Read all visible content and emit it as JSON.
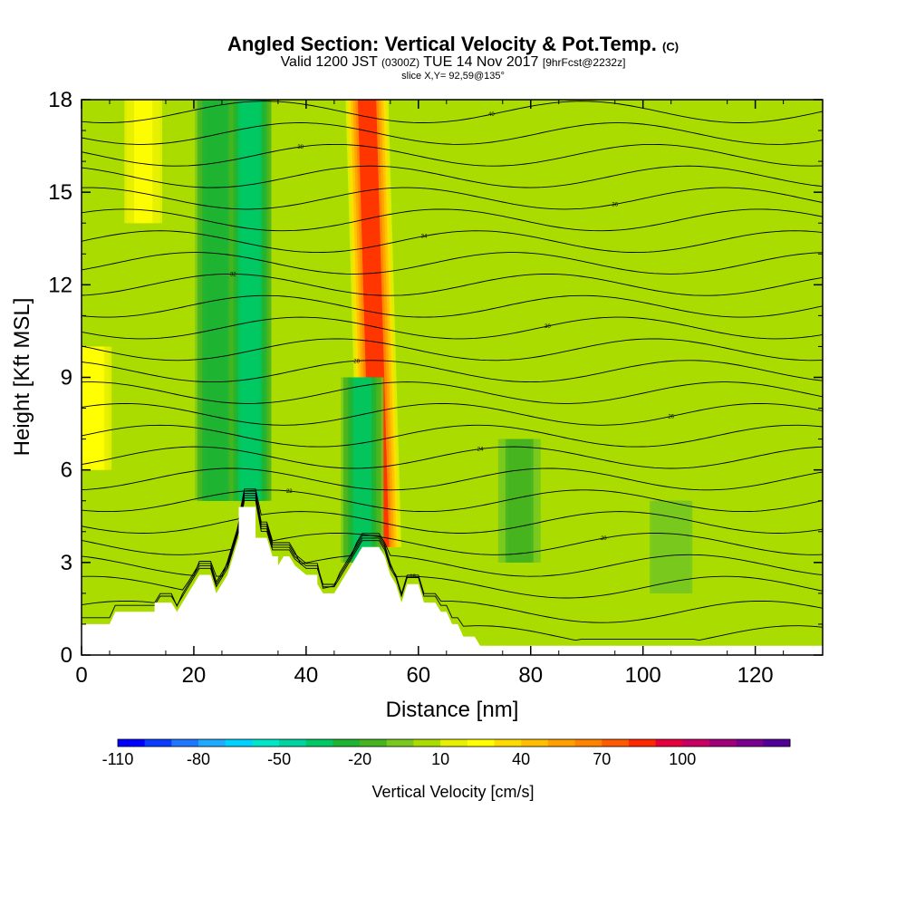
{
  "title": {
    "main": "Angled Section: Vertical Velocity & Pot.Temp.",
    "main_suffix": "(C)",
    "line2_a": "Valid 1200 JST",
    "line2_b": "(0300Z)",
    "line2_c": "TUE 14 Nov 2017",
    "line2_d": "[9hrFcst@2232z]",
    "line3": "slice X,Y= 92,59@135°"
  },
  "chart_data": {
    "type": "heatmap",
    "xlabel": "Distance [nm]",
    "ylabel": "Height [Kft MSL]",
    "xlim": [
      0,
      132
    ],
    "ylim": [
      0,
      18
    ],
    "xticks": [
      0,
      20,
      40,
      60,
      80,
      100,
      120
    ],
    "yticks": [
      0,
      3,
      6,
      9,
      12,
      15,
      18
    ],
    "colorbar": {
      "label": "Vertical Velocity [cm/s]",
      "tick_labels": [
        "-110",
        "-80",
        "-50",
        "-20",
        "10",
        "40",
        "70",
        "100"
      ],
      "tick_values": [
        -110,
        -80,
        -50,
        -20,
        10,
        40,
        70,
        100
      ],
      "levels_min": -110,
      "levels_step": 10,
      "colors": [
        "#0000ff",
        "#0a3cff",
        "#1e78ff",
        "#1eaaff",
        "#00d2ff",
        "#00e6c8",
        "#00d2a0",
        "#00c864",
        "#1eb432",
        "#46b41e",
        "#78c81e",
        "#aadc00",
        "#e6f000",
        "#ffff00",
        "#ffdc00",
        "#ffbe00",
        "#ffa000",
        "#ff8200",
        "#ff5a00",
        "#ff2800",
        "#e6003c",
        "#c80064",
        "#a00078",
        "#78008c",
        "#500096"
      ]
    },
    "updrafts": [
      {
        "x": 2,
        "z_bottom": 6,
        "z_top": 10,
        "w": 25
      },
      {
        "x": 11,
        "z_bottom": 14,
        "z_top": 18,
        "w": 20
      },
      {
        "x": 52,
        "z_bottom": 3.5,
        "z_top": 18,
        "w": 80
      }
    ],
    "downdrafts": [
      {
        "x": 24,
        "z_bottom": 5,
        "z_top": 18,
        "w": -30
      },
      {
        "x": 30,
        "z_bottom": 5,
        "z_top": 18,
        "w": -40
      },
      {
        "x": 50,
        "z_bottom": 3,
        "z_top": 9,
        "w": -35
      },
      {
        "x": 78,
        "z_bottom": 3,
        "z_top": 7,
        "w": -15
      },
      {
        "x": 105,
        "z_bottom": 2,
        "z_top": 5,
        "w": -10
      }
    ],
    "terrain_height_kft": [
      [
        0,
        1.0
      ],
      [
        5,
        1.0
      ],
      [
        6,
        1.4
      ],
      [
        13,
        1.4
      ],
      [
        13,
        1.7
      ],
      [
        16,
        1.7
      ],
      [
        17,
        1.4
      ],
      [
        18,
        1.7
      ],
      [
        19,
        2.0
      ],
      [
        20,
        2.3
      ],
      [
        21,
        2.6
      ],
      [
        23,
        2.6
      ],
      [
        24,
        2.0
      ],
      [
        26,
        2.6
      ],
      [
        27,
        3.2
      ],
      [
        28,
        3.8
      ],
      [
        28,
        4.8
      ],
      [
        31,
        4.8
      ],
      [
        31,
        3.8
      ],
      [
        33,
        3.8
      ],
      [
        34,
        3.2
      ],
      [
        35,
        3.2
      ],
      [
        35,
        2.9
      ],
      [
        36,
        3.2
      ],
      [
        37,
        3.2
      ],
      [
        38,
        2.9
      ],
      [
        40,
        2.6
      ],
      [
        42,
        2.6
      ],
      [
        42,
        2.3
      ],
      [
        43,
        2.0
      ],
      [
        45,
        2.0
      ],
      [
        46,
        2.3
      ],
      [
        47,
        2.6
      ],
      [
        48,
        2.9
      ],
      [
        49,
        3.2
      ],
      [
        50,
        3.5
      ],
      [
        53,
        3.5
      ],
      [
        54,
        3.2
      ],
      [
        55,
        2.6
      ],
      [
        56,
        2.3
      ],
      [
        57,
        1.7
      ],
      [
        58,
        2.3
      ],
      [
        60,
        2.3
      ],
      [
        61,
        1.7
      ],
      [
        63,
        1.7
      ],
      [
        64,
        1.4
      ],
      [
        65,
        1.4
      ],
      [
        66,
        1.0
      ],
      [
        67,
        1.0
      ],
      [
        68,
        0.6
      ],
      [
        70,
        0.6
      ],
      [
        71,
        0.3
      ],
      [
        132,
        0.3
      ]
    ],
    "isentropes": [
      {
        "base_z": 0.6,
        "label": "15"
      },
      {
        "base_z": 1.4,
        "label": ""
      },
      {
        "base_z": 2.2,
        "label": "18"
      },
      {
        "base_z": 2.9,
        "label": ""
      },
      {
        "base_z": 3.6,
        "label": "20"
      },
      {
        "base_z": 4.3,
        "label": ""
      },
      {
        "base_z": 5.0,
        "label": "22"
      },
      {
        "base_z": 5.7,
        "label": ""
      },
      {
        "base_z": 6.4,
        "label": "24"
      },
      {
        "base_z": 7.1,
        "label": ""
      },
      {
        "base_z": 7.8,
        "label": "26"
      },
      {
        "base_z": 8.5,
        "label": ""
      },
      {
        "base_z": 9.2,
        "label": "28"
      },
      {
        "base_z": 9.9,
        "label": ""
      },
      {
        "base_z": 10.6,
        "label": "30"
      },
      {
        "base_z": 11.3,
        "label": ""
      },
      {
        "base_z": 12.0,
        "label": "32"
      },
      {
        "base_z": 12.7,
        "label": ""
      },
      {
        "base_z": 13.4,
        "label": "34"
      },
      {
        "base_z": 14.1,
        "label": ""
      },
      {
        "base_z": 14.8,
        "label": "36"
      },
      {
        "base_z": 15.5,
        "label": ""
      },
      {
        "base_z": 16.2,
        "label": "38"
      },
      {
        "base_z": 16.9,
        "label": ""
      },
      {
        "base_z": 17.6,
        "label": "40"
      }
    ]
  }
}
